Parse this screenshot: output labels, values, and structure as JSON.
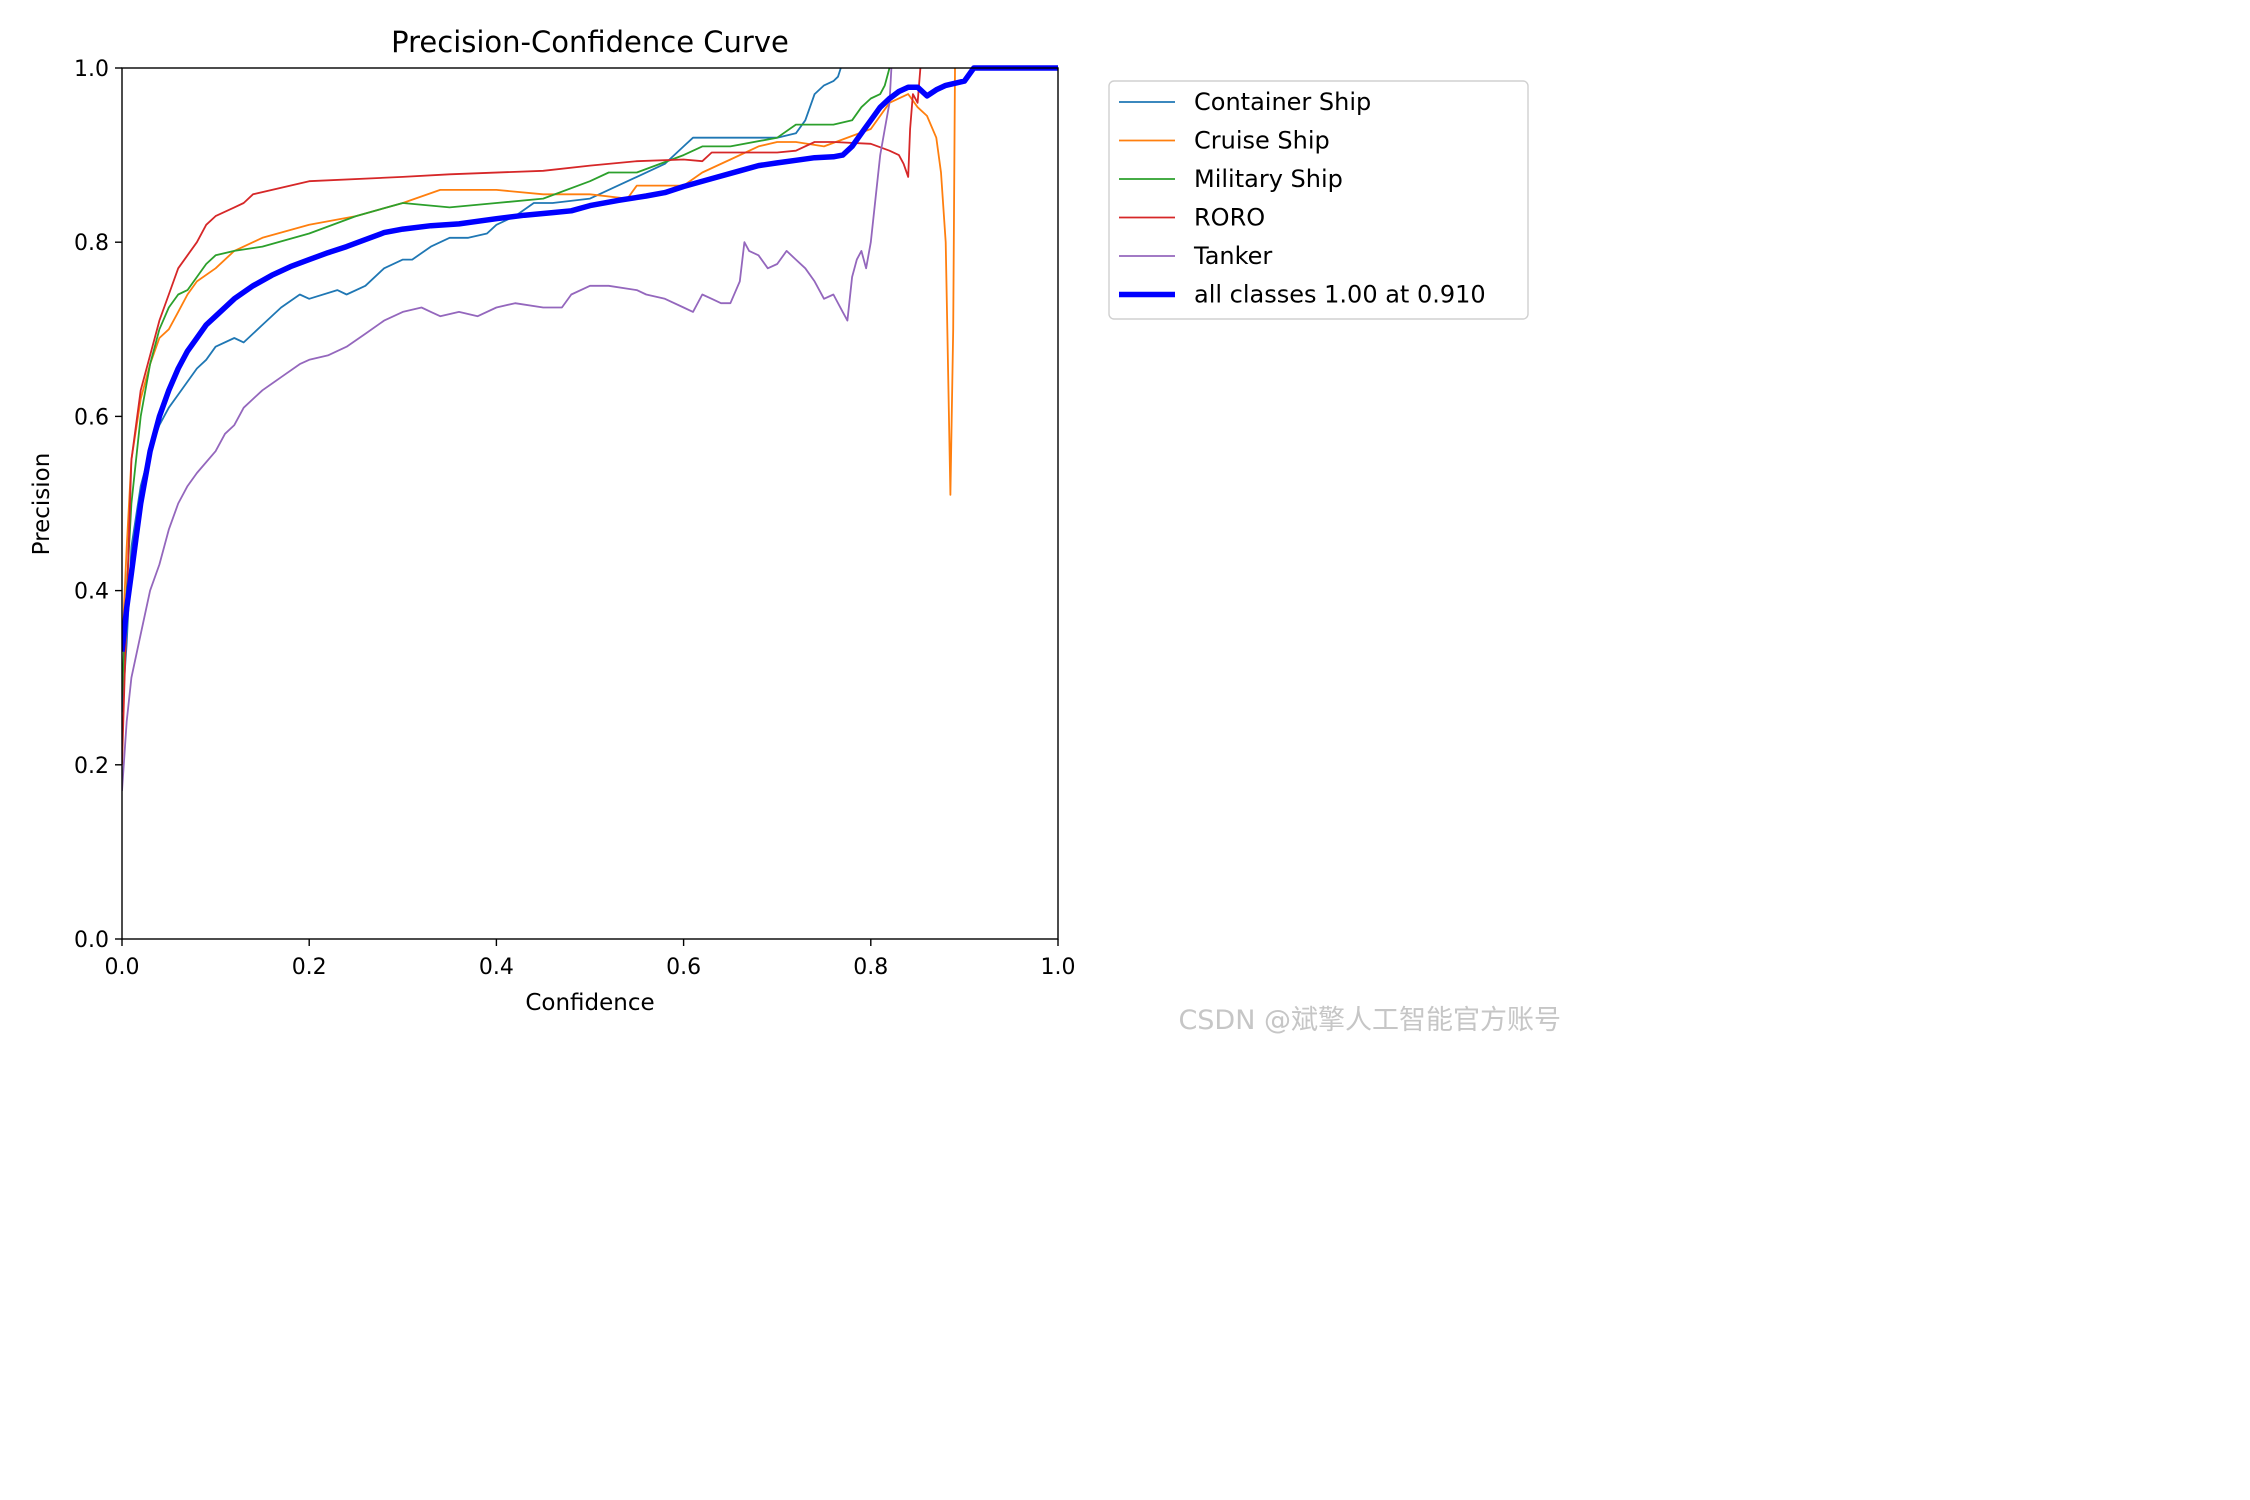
{
  "chart_data": {
    "type": "line",
    "title": "Precision-Confidence Curve",
    "xlabel": "Confidence",
    "ylabel": "Precision",
    "xlim": [
      0,
      1
    ],
    "ylim": [
      0,
      1
    ],
    "xticks": [
      "0.0",
      "0.2",
      "0.4",
      "0.6",
      "0.8",
      "1.0"
    ],
    "yticks": [
      "0.0",
      "0.2",
      "0.4",
      "0.6",
      "0.8",
      "1.0"
    ],
    "grid": false,
    "legend_position": "outside-top-right",
    "series": [
      {
        "name": "Container Ship",
        "color": "#1f77b4",
        "width": "thin",
        "points": [
          [
            0.0,
            0.26
          ],
          [
            0.005,
            0.34
          ],
          [
            0.01,
            0.45
          ],
          [
            0.02,
            0.52
          ],
          [
            0.03,
            0.56
          ],
          [
            0.04,
            0.59
          ],
          [
            0.05,
            0.61
          ],
          [
            0.06,
            0.625
          ],
          [
            0.07,
            0.64
          ],
          [
            0.08,
            0.655
          ],
          [
            0.09,
            0.665
          ],
          [
            0.1,
            0.68
          ],
          [
            0.12,
            0.69
          ],
          [
            0.13,
            0.685
          ],
          [
            0.15,
            0.705
          ],
          [
            0.17,
            0.725
          ],
          [
            0.19,
            0.74
          ],
          [
            0.2,
            0.735
          ],
          [
            0.23,
            0.745
          ],
          [
            0.24,
            0.74
          ],
          [
            0.26,
            0.75
          ],
          [
            0.28,
            0.77
          ],
          [
            0.3,
            0.78
          ],
          [
            0.31,
            0.78
          ],
          [
            0.33,
            0.795
          ],
          [
            0.35,
            0.805
          ],
          [
            0.37,
            0.805
          ],
          [
            0.39,
            0.81
          ],
          [
            0.4,
            0.82
          ],
          [
            0.42,
            0.83
          ],
          [
            0.44,
            0.845
          ],
          [
            0.46,
            0.845
          ],
          [
            0.5,
            0.85
          ],
          [
            0.55,
            0.875
          ],
          [
            0.58,
            0.89
          ],
          [
            0.6,
            0.91
          ],
          [
            0.61,
            0.92
          ],
          [
            0.65,
            0.92
          ],
          [
            0.7,
            0.92
          ],
          [
            0.72,
            0.925
          ],
          [
            0.73,
            0.94
          ],
          [
            0.74,
            0.97
          ],
          [
            0.75,
            0.98
          ],
          [
            0.76,
            0.985
          ],
          [
            0.765,
            0.99
          ],
          [
            0.768,
            1.0
          ]
        ]
      },
      {
        "name": "Cruise Ship",
        "color": "#ff7f0e",
        "width": "thin",
        "points": [
          [
            0.0,
            0.33
          ],
          [
            0.005,
            0.45
          ],
          [
            0.01,
            0.55
          ],
          [
            0.02,
            0.62
          ],
          [
            0.03,
            0.66
          ],
          [
            0.04,
            0.69
          ],
          [
            0.05,
            0.7
          ],
          [
            0.06,
            0.72
          ],
          [
            0.07,
            0.74
          ],
          [
            0.08,
            0.755
          ],
          [
            0.1,
            0.77
          ],
          [
            0.12,
            0.79
          ],
          [
            0.15,
            0.805
          ],
          [
            0.2,
            0.82
          ],
          [
            0.25,
            0.83
          ],
          [
            0.3,
            0.845
          ],
          [
            0.34,
            0.86
          ],
          [
            0.4,
            0.86
          ],
          [
            0.45,
            0.855
          ],
          [
            0.5,
            0.855
          ],
          [
            0.54,
            0.85
          ],
          [
            0.55,
            0.865
          ],
          [
            0.6,
            0.865
          ],
          [
            0.62,
            0.88
          ],
          [
            0.65,
            0.895
          ],
          [
            0.68,
            0.91
          ],
          [
            0.7,
            0.915
          ],
          [
            0.72,
            0.915
          ],
          [
            0.75,
            0.91
          ],
          [
            0.8,
            0.93
          ],
          [
            0.82,
            0.96
          ],
          [
            0.84,
            0.97
          ],
          [
            0.85,
            0.955
          ],
          [
            0.86,
            0.945
          ],
          [
            0.87,
            0.92
          ],
          [
            0.875,
            0.88
          ],
          [
            0.88,
            0.8
          ],
          [
            0.885,
            0.51
          ],
          [
            0.888,
            0.7
          ],
          [
            0.89,
            1.0
          ]
        ]
      },
      {
        "name": "Military Ship",
        "color": "#2ca02c",
        "width": "thin",
        "points": [
          [
            0.0,
            0.28
          ],
          [
            0.005,
            0.4
          ],
          [
            0.01,
            0.5
          ],
          [
            0.02,
            0.6
          ],
          [
            0.03,
            0.66
          ],
          [
            0.04,
            0.7
          ],
          [
            0.05,
            0.725
          ],
          [
            0.06,
            0.74
          ],
          [
            0.07,
            0.745
          ],
          [
            0.08,
            0.76
          ],
          [
            0.09,
            0.775
          ],
          [
            0.1,
            0.785
          ],
          [
            0.12,
            0.79
          ],
          [
            0.15,
            0.795
          ],
          [
            0.2,
            0.81
          ],
          [
            0.25,
            0.83
          ],
          [
            0.3,
            0.845
          ],
          [
            0.35,
            0.84
          ],
          [
            0.4,
            0.845
          ],
          [
            0.45,
            0.85
          ],
          [
            0.5,
            0.87
          ],
          [
            0.52,
            0.88
          ],
          [
            0.55,
            0.88
          ],
          [
            0.6,
            0.9
          ],
          [
            0.62,
            0.91
          ],
          [
            0.65,
            0.91
          ],
          [
            0.7,
            0.92
          ],
          [
            0.72,
            0.935
          ],
          [
            0.76,
            0.935
          ],
          [
            0.78,
            0.94
          ],
          [
            0.79,
            0.955
          ],
          [
            0.8,
            0.965
          ],
          [
            0.81,
            0.97
          ],
          [
            0.815,
            0.98
          ],
          [
            0.82,
            1.0
          ]
        ]
      },
      {
        "name": "RORO",
        "color": "#d62728",
        "width": "thin",
        "points": [
          [
            0.0,
            0.2
          ],
          [
            0.005,
            0.38
          ],
          [
            0.01,
            0.55
          ],
          [
            0.02,
            0.63
          ],
          [
            0.03,
            0.67
          ],
          [
            0.04,
            0.71
          ],
          [
            0.05,
            0.74
          ],
          [
            0.06,
            0.77
          ],
          [
            0.07,
            0.785
          ],
          [
            0.08,
            0.8
          ],
          [
            0.09,
            0.82
          ],
          [
            0.1,
            0.83
          ],
          [
            0.12,
            0.84
          ],
          [
            0.13,
            0.845
          ],
          [
            0.14,
            0.855
          ],
          [
            0.2,
            0.87
          ],
          [
            0.3,
            0.875
          ],
          [
            0.35,
            0.878
          ],
          [
            0.45,
            0.882
          ],
          [
            0.5,
            0.888
          ],
          [
            0.55,
            0.893
          ],
          [
            0.6,
            0.895
          ],
          [
            0.62,
            0.893
          ],
          [
            0.63,
            0.903
          ],
          [
            0.7,
            0.903
          ],
          [
            0.72,
            0.905
          ],
          [
            0.74,
            0.915
          ],
          [
            0.76,
            0.915
          ],
          [
            0.8,
            0.913
          ],
          [
            0.82,
            0.905
          ],
          [
            0.83,
            0.9
          ],
          [
            0.835,
            0.89
          ],
          [
            0.84,
            0.875
          ],
          [
            0.842,
            0.93
          ],
          [
            0.845,
            0.97
          ],
          [
            0.85,
            0.96
          ],
          [
            0.853,
            1.0
          ]
        ]
      },
      {
        "name": "Tanker",
        "color": "#9467bd",
        "width": "thin",
        "points": [
          [
            0.0,
            0.17
          ],
          [
            0.005,
            0.25
          ],
          [
            0.01,
            0.3
          ],
          [
            0.02,
            0.35
          ],
          [
            0.03,
            0.4
          ],
          [
            0.04,
            0.43
          ],
          [
            0.05,
            0.47
          ],
          [
            0.06,
            0.5
          ],
          [
            0.07,
            0.52
          ],
          [
            0.08,
            0.535
          ],
          [
            0.1,
            0.56
          ],
          [
            0.11,
            0.58
          ],
          [
            0.12,
            0.59
          ],
          [
            0.13,
            0.61
          ],
          [
            0.14,
            0.62
          ],
          [
            0.15,
            0.63
          ],
          [
            0.17,
            0.645
          ],
          [
            0.19,
            0.66
          ],
          [
            0.2,
            0.665
          ],
          [
            0.22,
            0.67
          ],
          [
            0.24,
            0.68
          ],
          [
            0.26,
            0.695
          ],
          [
            0.28,
            0.71
          ],
          [
            0.3,
            0.72
          ],
          [
            0.32,
            0.725
          ],
          [
            0.33,
            0.72
          ],
          [
            0.34,
            0.715
          ],
          [
            0.36,
            0.72
          ],
          [
            0.38,
            0.715
          ],
          [
            0.4,
            0.725
          ],
          [
            0.42,
            0.73
          ],
          [
            0.45,
            0.725
          ],
          [
            0.47,
            0.725
          ],
          [
            0.48,
            0.74
          ],
          [
            0.5,
            0.75
          ],
          [
            0.52,
            0.75
          ],
          [
            0.55,
            0.745
          ],
          [
            0.56,
            0.74
          ],
          [
            0.58,
            0.735
          ],
          [
            0.6,
            0.725
          ],
          [
            0.61,
            0.72
          ],
          [
            0.62,
            0.74
          ],
          [
            0.63,
            0.735
          ],
          [
            0.64,
            0.73
          ],
          [
            0.65,
            0.73
          ],
          [
            0.66,
            0.755
          ],
          [
            0.665,
            0.8
          ],
          [
            0.67,
            0.79
          ],
          [
            0.68,
            0.785
          ],
          [
            0.69,
            0.77
          ],
          [
            0.7,
            0.775
          ],
          [
            0.71,
            0.79
          ],
          [
            0.72,
            0.78
          ],
          [
            0.73,
            0.77
          ],
          [
            0.74,
            0.755
          ],
          [
            0.75,
            0.735
          ],
          [
            0.76,
            0.74
          ],
          [
            0.77,
            0.72
          ],
          [
            0.775,
            0.71
          ],
          [
            0.78,
            0.76
          ],
          [
            0.785,
            0.78
          ],
          [
            0.79,
            0.79
          ],
          [
            0.795,
            0.77
          ],
          [
            0.8,
            0.8
          ],
          [
            0.805,
            0.85
          ],
          [
            0.81,
            0.9
          ],
          [
            0.815,
            0.93
          ],
          [
            0.82,
            0.96
          ],
          [
            0.822,
            1.0
          ]
        ]
      },
      {
        "name": "all classes 1.00 at 0.910",
        "color": "#0000ff",
        "width": "thick",
        "points": [
          [
            0.0,
            0.33
          ],
          [
            0.005,
            0.38
          ],
          [
            0.01,
            0.42
          ],
          [
            0.015,
            0.46
          ],
          [
            0.02,
            0.5
          ],
          [
            0.03,
            0.56
          ],
          [
            0.04,
            0.6
          ],
          [
            0.05,
            0.63
          ],
          [
            0.06,
            0.655
          ],
          [
            0.07,
            0.675
          ],
          [
            0.08,
            0.69
          ],
          [
            0.09,
            0.705
          ],
          [
            0.1,
            0.715
          ],
          [
            0.12,
            0.735
          ],
          [
            0.14,
            0.75
          ],
          [
            0.16,
            0.762
          ],
          [
            0.18,
            0.772
          ],
          [
            0.2,
            0.78
          ],
          [
            0.22,
            0.788
          ],
          [
            0.24,
            0.795
          ],
          [
            0.26,
            0.803
          ],
          [
            0.28,
            0.811
          ],
          [
            0.3,
            0.815
          ],
          [
            0.33,
            0.819
          ],
          [
            0.36,
            0.821
          ],
          [
            0.4,
            0.827
          ],
          [
            0.43,
            0.831
          ],
          [
            0.46,
            0.834
          ],
          [
            0.48,
            0.836
          ],
          [
            0.5,
            0.842
          ],
          [
            0.53,
            0.848
          ],
          [
            0.56,
            0.853
          ],
          [
            0.58,
            0.857
          ],
          [
            0.6,
            0.864
          ],
          [
            0.63,
            0.873
          ],
          [
            0.66,
            0.882
          ],
          [
            0.68,
            0.888
          ],
          [
            0.7,
            0.891
          ],
          [
            0.72,
            0.894
          ],
          [
            0.74,
            0.897
          ],
          [
            0.76,
            0.898
          ],
          [
            0.77,
            0.9
          ],
          [
            0.78,
            0.91
          ],
          [
            0.79,
            0.925
          ],
          [
            0.8,
            0.94
          ],
          [
            0.81,
            0.955
          ],
          [
            0.82,
            0.965
          ],
          [
            0.83,
            0.973
          ],
          [
            0.84,
            0.978
          ],
          [
            0.85,
            0.978
          ],
          [
            0.86,
            0.968
          ],
          [
            0.87,
            0.975
          ],
          [
            0.88,
            0.98
          ],
          [
            0.9,
            0.985
          ],
          [
            0.91,
            1.0
          ],
          [
            1.0,
            1.0
          ]
        ]
      }
    ]
  },
  "watermark": "CSDN @斌擎人工智能官方账号"
}
